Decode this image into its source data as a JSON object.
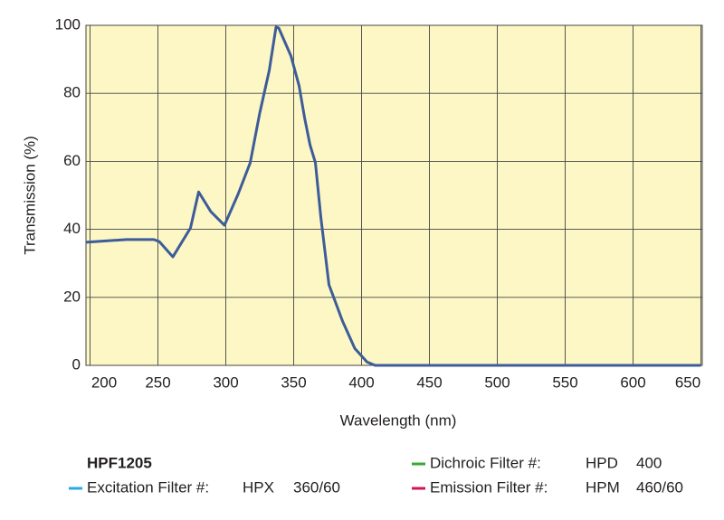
{
  "chart_data": {
    "type": "line",
    "x_label": "Wavelength (nm)",
    "y_label": "Transmission (%)",
    "x": [
      197,
      227,
      247,
      251,
      261,
      274,
      280,
      289,
      299,
      309,
      318,
      325,
      332,
      337,
      339,
      348,
      354,
      358,
      362,
      366,
      370,
      376,
      386,
      395,
      404,
      410,
      650
    ],
    "series": [
      {
        "color": "#3d5c99",
        "values": [
          36.2,
          37,
          37,
          36.4,
          31.9,
          40.4,
          51,
          45.2,
          41.2,
          50.3,
          59.6,
          74.2,
          86.7,
          99.5,
          99.2,
          91,
          82.2,
          72.9,
          64.9,
          59.6,
          43.6,
          23.7,
          13,
          5,
          1,
          0,
          0
        ]
      }
    ],
    "xlim": [
      197,
      651
    ],
    "xticks": [
      200,
      250,
      300,
      350,
      400,
      450,
      500,
      550,
      600,
      650
    ],
    "ylim": [
      0,
      100
    ],
    "yticks": [
      0,
      20,
      40,
      60,
      80,
      100
    ],
    "grid": true,
    "background": "#fcf7c5"
  },
  "filter_set": {
    "title": "HPF1205",
    "filters": [
      {
        "label": "Excitation Filter #:",
        "code": "HPX",
        "spec": "360/60",
        "color": "#29abe2"
      },
      {
        "label": "Dichroic Filter #:",
        "code": "HPD",
        "spec": "400",
        "color": "#3aa935"
      },
      {
        "label": "Emission Filter #:",
        "code": "HPM",
        "spec": "460/60",
        "color": "#d4145a"
      }
    ]
  }
}
